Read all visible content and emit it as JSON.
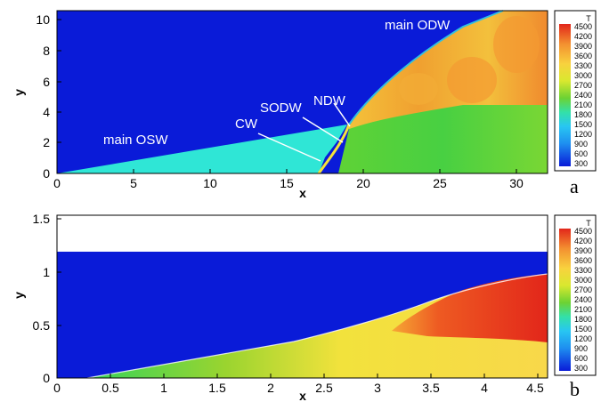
{
  "colors": {
    "background": "#0a1bd8",
    "scale": [
      "#0a1bd8",
      "#1a55e6",
      "#1e8ff0",
      "#28c6f2",
      "#30e6d8",
      "#33e0a8",
      "#36d45a",
      "#6cd233",
      "#a7dc2b",
      "#d9e82f",
      "#f4e83c",
      "#f8d23e",
      "#f6b438",
      "#f39030",
      "#ee5a22",
      "#e2261a"
    ]
  },
  "figure": {
    "panel_a": {
      "label": "a",
      "xlabel": "x",
      "ylabel": "y",
      "xticks": [
        "0",
        "5",
        "10",
        "15",
        "20",
        "25",
        "30"
      ],
      "yticks": [
        "0",
        "2",
        "4",
        "6",
        "8",
        "10"
      ],
      "annotations": [
        "main ODW",
        "main OSW",
        "CW",
        "SODW",
        "NDW"
      ]
    },
    "panel_b": {
      "label": "b",
      "xlabel": "x",
      "ylabel": "y",
      "xticks": [
        "0",
        "0.5",
        "1",
        "1.5",
        "2",
        "2.5",
        "3",
        "3.5",
        "4",
        "4.5"
      ],
      "yticks": [
        "0",
        "0.5",
        "1",
        "1.5"
      ]
    },
    "legend": {
      "title": "T",
      "levels": [
        "4500",
        "4200",
        "3900",
        "3600",
        "3300",
        "3000",
        "2700",
        "2400",
        "2100",
        "1800",
        "1500",
        "1200",
        "900",
        "600",
        "300"
      ]
    }
  },
  "chart_data": [
    {
      "type": "heatmap",
      "panel": "a",
      "xlabel": "x",
      "ylabel": "y",
      "xlim": [
        0,
        32
      ],
      "ylim": [
        0,
        10.7
      ],
      "x_ticks": [
        0,
        5,
        10,
        15,
        20,
        25,
        30
      ],
      "y_ticks": [
        0,
        2,
        4,
        6,
        8,
        10
      ],
      "colorbar": {
        "title": "T",
        "levels": [
          300,
          600,
          900,
          1200,
          1500,
          1800,
          2100,
          2400,
          2700,
          3000,
          3300,
          3600,
          3900,
          4200,
          4500
        ]
      },
      "annotations": [
        "main ODW",
        "main OSW",
        "CW",
        "SODW",
        "NDW"
      ]
    },
    {
      "type": "heatmap",
      "panel": "b",
      "xlabel": "x",
      "ylabel": "y",
      "xlim": [
        0,
        4.6
      ],
      "ylim": [
        0,
        1.55
      ],
      "x_ticks": [
        0,
        0.5,
        1,
        1.5,
        2,
        2.5,
        3,
        3.5,
        4,
        4.5
      ],
      "y_ticks": [
        0,
        0.5,
        1,
        1.5
      ],
      "colorbar": {
        "title": "T",
        "levels": [
          300,
          600,
          900,
          1200,
          1500,
          1800,
          2100,
          2400,
          2700,
          3000,
          3300,
          3600,
          3900,
          4200,
          4500
        ]
      }
    }
  ]
}
